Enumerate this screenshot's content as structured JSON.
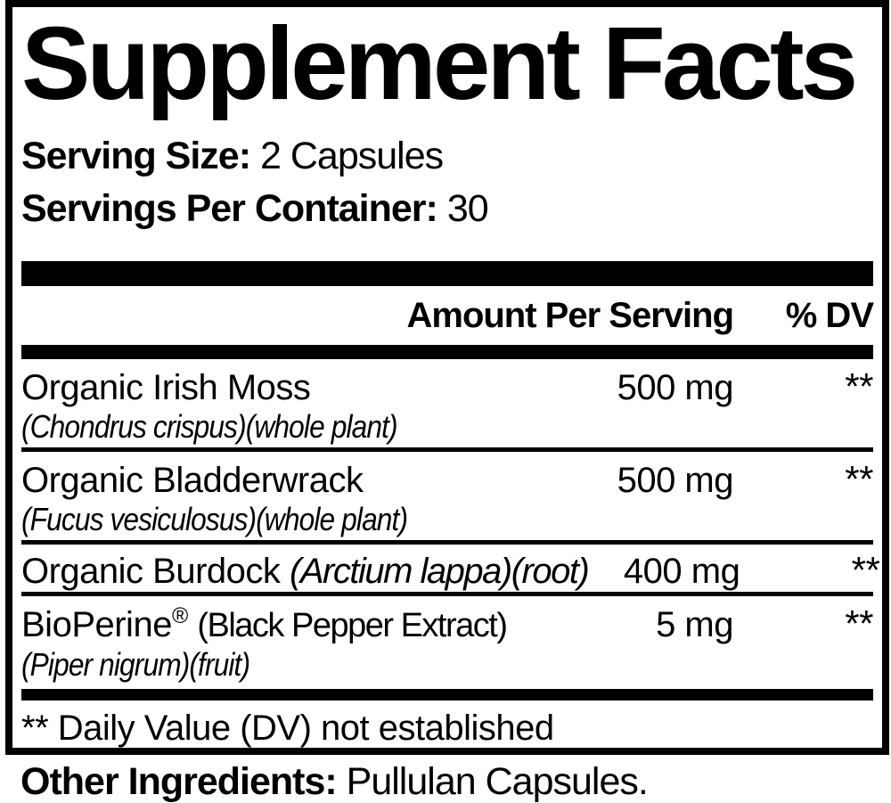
{
  "panel": {
    "title": "Supplement Facts",
    "serving": {
      "size_label": "Serving Size:",
      "size_value": "2 Capsules",
      "per_container_label": "Servings Per Container:",
      "per_container_value": "30"
    },
    "columns": {
      "amount": "Amount Per Serving",
      "dv": "% DV"
    },
    "ingredients": [
      {
        "name": "Organic Irish Moss",
        "scientific": "(Chondrus crispus)(whole plant)",
        "amount": "500 mg",
        "dv": "**"
      },
      {
        "name": "Organic Bladderwrack",
        "scientific": "(Fucus vesiculosus)(whole plant)",
        "amount": "500 mg",
        "dv": "**"
      },
      {
        "name": "Organic Burdock",
        "name_italic": "(Arctium lappa)(root)",
        "amount": "400 mg",
        "dv": "**"
      },
      {
        "name": "BioPerine",
        "trademark": "®",
        "detail": "(Black Pepper Extract)",
        "scientific": "(Piper nigrum)(fruit)",
        "amount": "5 mg",
        "dv": "**"
      }
    ],
    "footnote": "** Daily Value (DV) not established"
  },
  "other_ingredients": {
    "label": "Other Ingredients:",
    "value": "Pullulan Capsules."
  },
  "colors": {
    "text": "#000000",
    "background": "#ffffff"
  }
}
